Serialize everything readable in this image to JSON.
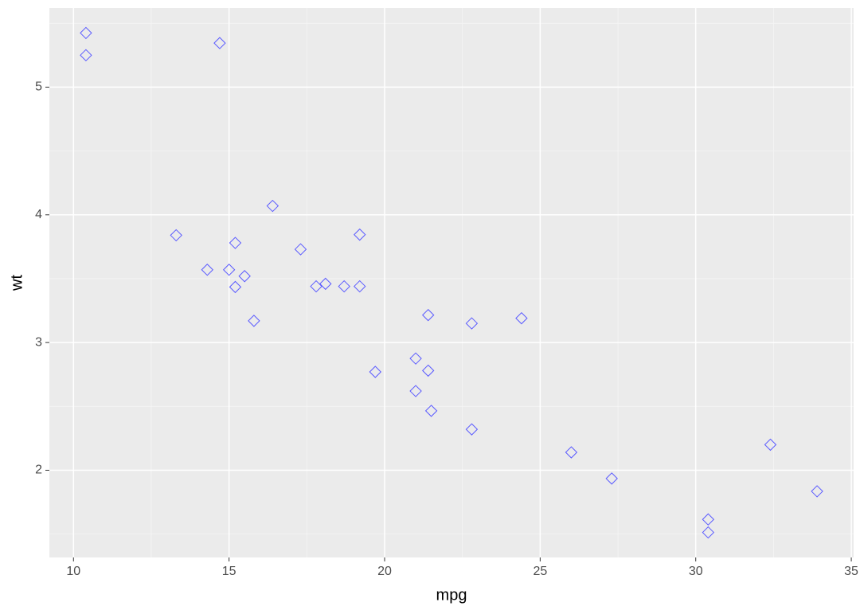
{
  "chart_data": {
    "type": "scatter",
    "x_label": "mpg",
    "y_label": "wt",
    "series": [
      {
        "color": "#5a5aff",
        "marker": "diamond",
        "x": [
          21.0,
          21.0,
          22.8,
          21.4,
          18.7,
          18.1,
          14.3,
          24.4,
          22.8,
          19.2,
          17.8,
          16.4,
          17.3,
          15.2,
          10.4,
          10.4,
          14.7,
          32.4,
          30.4,
          33.9,
          21.5,
          15.5,
          15.2,
          13.3,
          19.2,
          27.3,
          26.0,
          30.4,
          15.8,
          19.7,
          15.0,
          21.4
        ],
        "values": [
          2.62,
          2.875,
          2.32,
          3.215,
          3.44,
          3.46,
          3.57,
          3.19,
          3.15,
          3.44,
          3.44,
          4.07,
          3.73,
          3.78,
          5.25,
          5.424,
          5.345,
          2.2,
          1.615,
          1.835,
          2.465,
          3.52,
          3.435,
          3.84,
          3.845,
          1.935,
          2.14,
          1.513,
          3.17,
          2.77,
          3.57,
          2.78
        ]
      }
    ],
    "xlim": [
      9.225,
      35.075
    ],
    "ylim": [
      1.317,
      5.62
    ],
    "xticks": [
      10,
      15,
      20,
      25,
      30,
      35
    ],
    "yticks": [
      2,
      3,
      4,
      5
    ],
    "x_minor_ticks": [
      12.5,
      17.5,
      22.5,
      27.5,
      32.5
    ],
    "y_minor_ticks": [
      1.5,
      2.5,
      3.5,
      4.5,
      5.5
    ],
    "grid": true
  }
}
